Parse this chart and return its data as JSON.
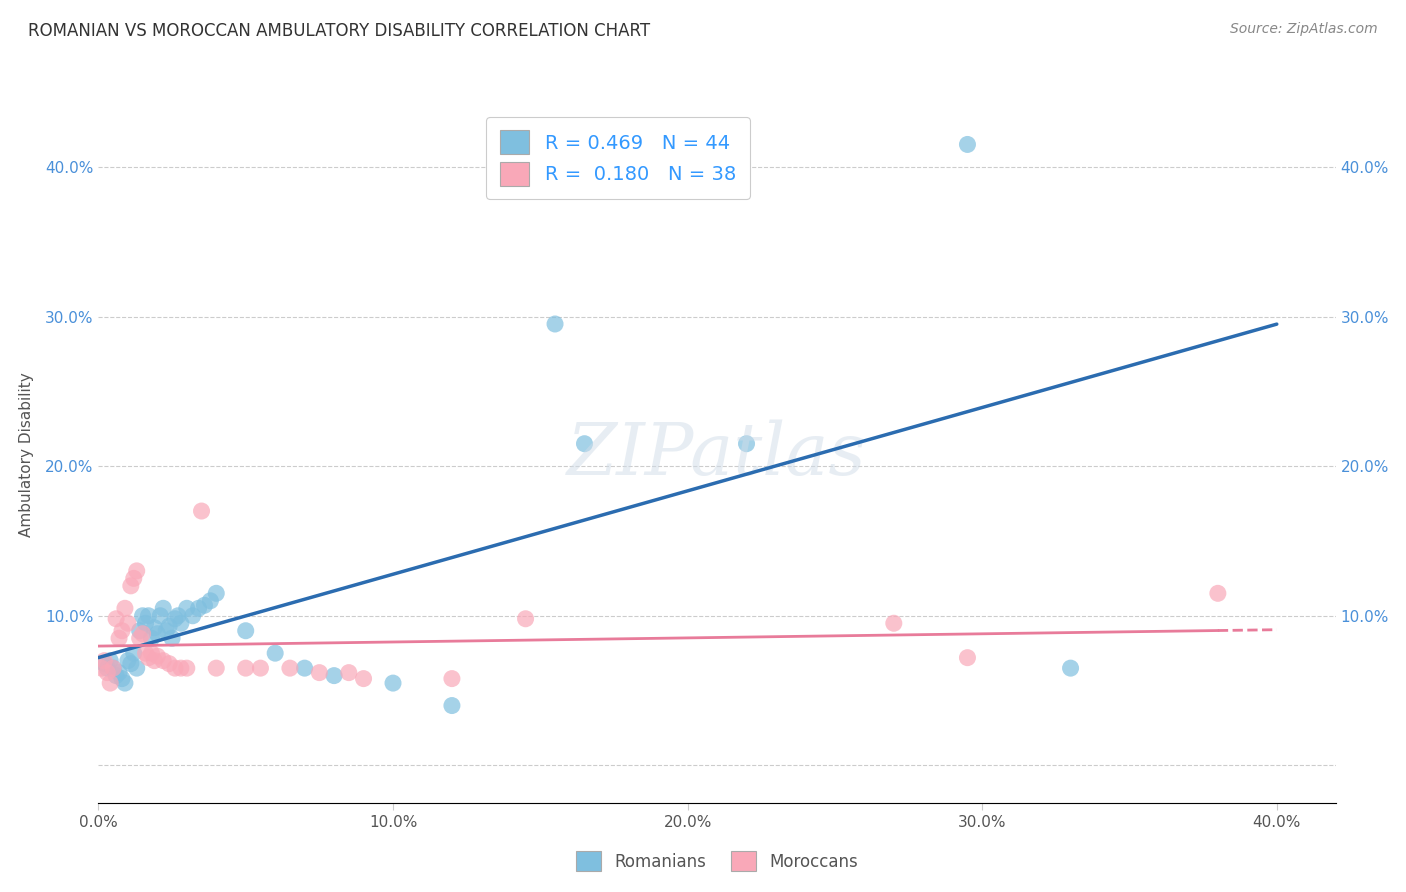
{
  "title": "ROMANIAN VS MOROCCAN AMBULATORY DISABILITY CORRELATION CHART",
  "source": "Source: ZipAtlas.com",
  "ylabel": "Ambulatory Disability",
  "romanian_color": "#7fbfdf",
  "moroccan_color": "#f9a8b8",
  "legend_R_romanian": "0.469",
  "legend_N_romanian": "44",
  "legend_R_moroccan": "0.180",
  "legend_N_moroccan": "38",
  "romanians": [
    [
      0.002,
      0.068
    ],
    [
      0.003,
      0.065
    ],
    [
      0.004,
      0.07
    ],
    [
      0.005,
      0.065
    ],
    [
      0.006,
      0.06
    ],
    [
      0.007,
      0.062
    ],
    [
      0.008,
      0.058
    ],
    [
      0.009,
      0.055
    ],
    [
      0.01,
      0.07
    ],
    [
      0.011,
      0.068
    ],
    [
      0.012,
      0.075
    ],
    [
      0.013,
      0.065
    ],
    [
      0.014,
      0.09
    ],
    [
      0.015,
      0.1
    ],
    [
      0.016,
      0.095
    ],
    [
      0.017,
      0.1
    ],
    [
      0.018,
      0.085
    ],
    [
      0.019,
      0.092
    ],
    [
      0.02,
      0.088
    ],
    [
      0.021,
      0.1
    ],
    [
      0.022,
      0.105
    ],
    [
      0.023,
      0.09
    ],
    [
      0.024,
      0.093
    ],
    [
      0.025,
      0.085
    ],
    [
      0.026,
      0.098
    ],
    [
      0.027,
      0.1
    ],
    [
      0.028,
      0.095
    ],
    [
      0.03,
      0.105
    ],
    [
      0.032,
      0.1
    ],
    [
      0.034,
      0.105
    ],
    [
      0.036,
      0.107
    ],
    [
      0.038,
      0.11
    ],
    [
      0.04,
      0.115
    ],
    [
      0.05,
      0.09
    ],
    [
      0.06,
      0.075
    ],
    [
      0.07,
      0.065
    ],
    [
      0.08,
      0.06
    ],
    [
      0.1,
      0.055
    ],
    [
      0.12,
      0.04
    ],
    [
      0.155,
      0.295
    ],
    [
      0.165,
      0.215
    ],
    [
      0.22,
      0.215
    ],
    [
      0.295,
      0.415
    ],
    [
      0.33,
      0.065
    ]
  ],
  "moroccans": [
    [
      0.001,
      0.065
    ],
    [
      0.002,
      0.07
    ],
    [
      0.003,
      0.062
    ],
    [
      0.004,
      0.055
    ],
    [
      0.005,
      0.065
    ],
    [
      0.006,
      0.098
    ],
    [
      0.007,
      0.085
    ],
    [
      0.008,
      0.09
    ],
    [
      0.009,
      0.105
    ],
    [
      0.01,
      0.095
    ],
    [
      0.011,
      0.12
    ],
    [
      0.012,
      0.125
    ],
    [
      0.013,
      0.13
    ],
    [
      0.014,
      0.085
    ],
    [
      0.015,
      0.088
    ],
    [
      0.016,
      0.075
    ],
    [
      0.017,
      0.072
    ],
    [
      0.018,
      0.075
    ],
    [
      0.019,
      0.07
    ],
    [
      0.02,
      0.073
    ],
    [
      0.022,
      0.07
    ],
    [
      0.024,
      0.068
    ],
    [
      0.026,
      0.065
    ],
    [
      0.028,
      0.065
    ],
    [
      0.03,
      0.065
    ],
    [
      0.035,
      0.17
    ],
    [
      0.04,
      0.065
    ],
    [
      0.05,
      0.065
    ],
    [
      0.055,
      0.065
    ],
    [
      0.065,
      0.065
    ],
    [
      0.075,
      0.062
    ],
    [
      0.085,
      0.062
    ],
    [
      0.09,
      0.058
    ],
    [
      0.12,
      0.058
    ],
    [
      0.145,
      0.098
    ],
    [
      0.27,
      0.095
    ],
    [
      0.295,
      0.072
    ],
    [
      0.38,
      0.115
    ]
  ],
  "xlim": [
    0.0,
    0.42
  ],
  "ylim": [
    -0.025,
    0.44
  ],
  "xticks": [
    0.0,
    0.1,
    0.2,
    0.3,
    0.4
  ],
  "yticks": [
    0.0,
    0.1,
    0.2,
    0.3,
    0.4
  ],
  "xtick_labels": [
    "0.0%",
    "10.0%",
    "20.0%",
    "30.0%",
    "40.0%"
  ],
  "ytick_labels": [
    "",
    "10.0%",
    "20.0%",
    "30.0%",
    "40.0%"
  ],
  "watermark": "ZIPatlas"
}
